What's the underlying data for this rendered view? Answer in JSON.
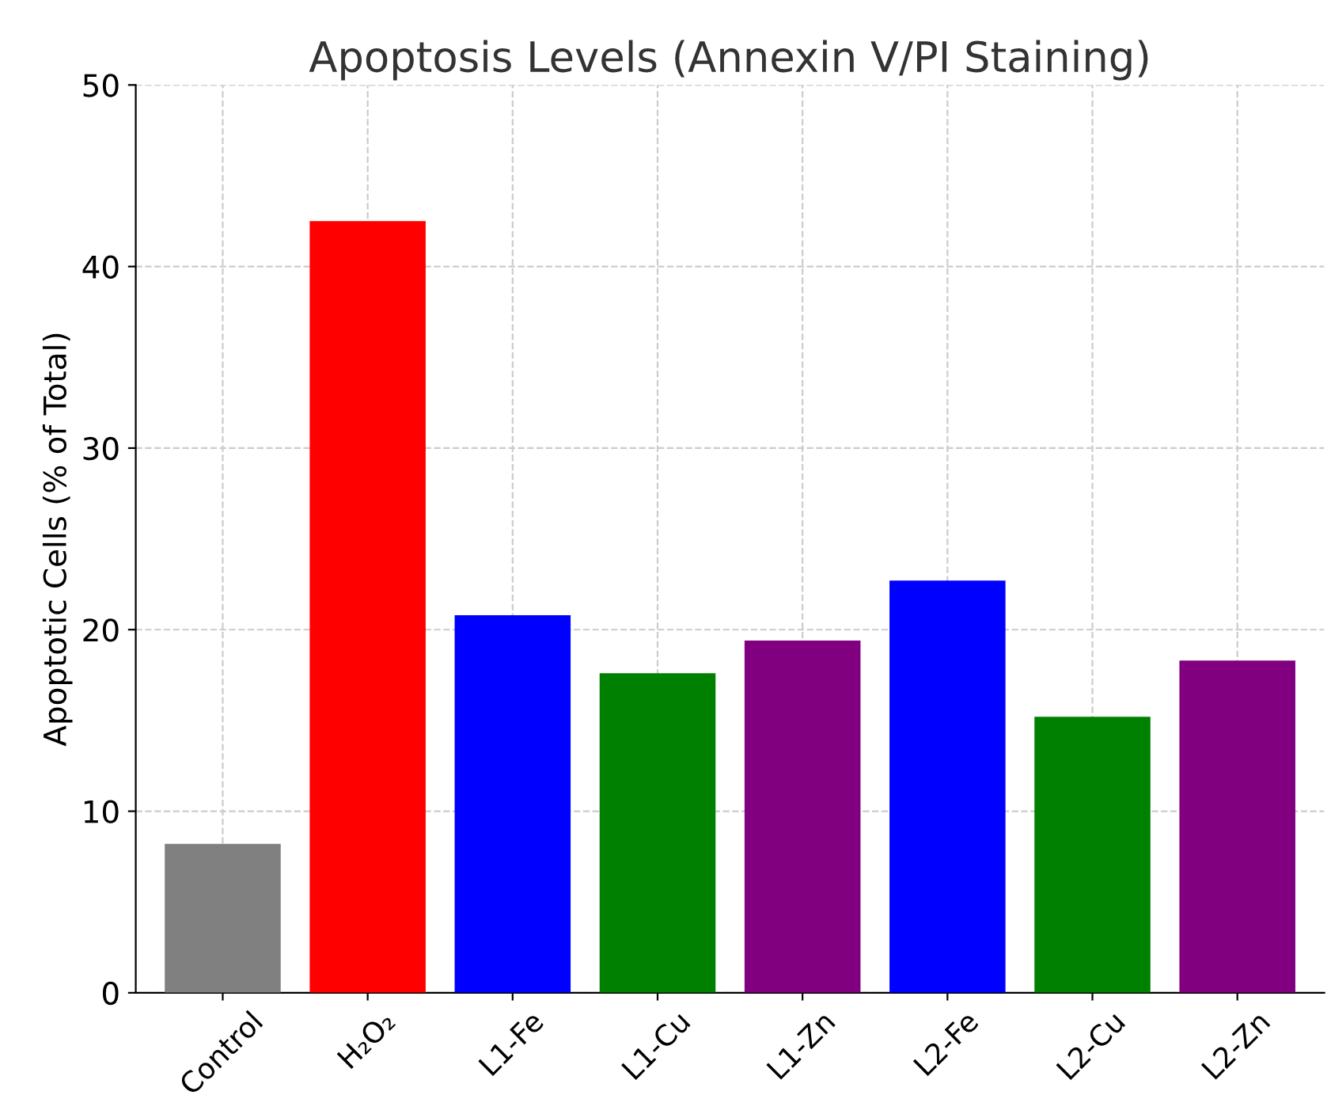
{
  "chart_data": {
    "type": "bar",
    "title": "Apoptosis Levels (Annexin V/PI Staining)",
    "ylabel": "Apoptotic Cells (% of Total)",
    "categories": [
      "Control",
      "H₂O₂",
      "L1-Fe",
      "L1-Cu",
      "L1-Zn",
      "L2-Fe",
      "L2-Cu",
      "L2-Zn"
    ],
    "values": [
      8.2,
      42.5,
      20.8,
      17.6,
      19.4,
      22.7,
      15.2,
      18.3
    ],
    "colors": [
      "#808080",
      "#ff0000",
      "#0000ff",
      "#008000",
      "#800080",
      "#0000ff",
      "#008000",
      "#800080"
    ],
    "ylim": [
      0,
      50
    ],
    "yticks": [
      0,
      10,
      20,
      30,
      40,
      50
    ],
    "grid": true
  }
}
